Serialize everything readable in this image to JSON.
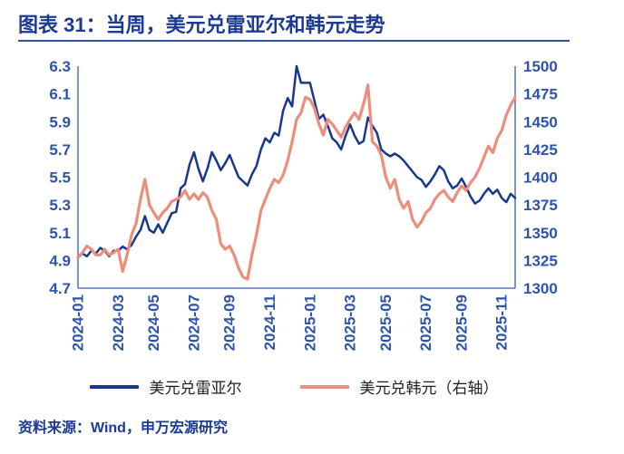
{
  "header": {
    "title": "图表 31：当周，美元兑雷亚尔和韩元走势"
  },
  "colors": {
    "accent_navy": "#1b3a94",
    "tick_blue": "#2d54a8",
    "axis_line": "#3a5ca8",
    "rule": "#2d54a8",
    "series_brl": "#17388c",
    "series_krw": "#ed8d7c",
    "legend_text": "#1f1f1f"
  },
  "chart_data": {
    "type": "line",
    "title": "当周，美元兑雷亚尔和韩元走势",
    "grid": false,
    "legend_position": "bottom",
    "x_tick_labels": [
      "2024-01",
      "2024-03",
      "2024-05",
      "2024-07",
      "2024-09",
      "2024-11",
      "2025-01",
      "2025-03",
      "2025-05",
      "2025-07",
      "2025-09",
      "2025-11"
    ],
    "x_tick_indices": [
      0,
      9,
      17,
      26,
      34,
      43,
      52,
      61,
      69,
      78,
      86,
      95
    ],
    "left_axis": {
      "min": 4.7,
      "max": 6.3,
      "step": 0.2,
      "ticks": [
        "6.3",
        "6.1",
        "5.9",
        "5.7",
        "5.5",
        "5.3",
        "5.1",
        "4.9",
        "4.7"
      ]
    },
    "right_axis": {
      "min": 1300,
      "max": 1500,
      "step": 25,
      "ticks": [
        "1500",
        "1475",
        "1450",
        "1425",
        "1400",
        "1375",
        "1350",
        "1325",
        "1300"
      ]
    },
    "series": [
      {
        "name": "美元兑雷亚尔",
        "axis": "left",
        "color_key": "series_brl",
        "values": [
          4.92,
          4.95,
          4.93,
          4.97,
          4.95,
          4.99,
          4.97,
          4.93,
          4.97,
          4.97,
          5.0,
          4.98,
          5.01,
          5.07,
          5.12,
          5.22,
          5.12,
          5.1,
          5.16,
          5.1,
          5.17,
          5.24,
          5.25,
          5.42,
          5.45,
          5.59,
          5.68,
          5.56,
          5.47,
          5.56,
          5.68,
          5.62,
          5.55,
          5.6,
          5.66,
          5.58,
          5.5,
          5.47,
          5.44,
          5.52,
          5.58,
          5.7,
          5.78,
          5.75,
          5.82,
          5.8,
          5.98,
          6.07,
          6.01,
          6.3,
          6.18,
          6.18,
          6.18,
          6.05,
          5.92,
          5.95,
          5.87,
          5.78,
          5.75,
          5.7,
          5.8,
          5.88,
          5.8,
          5.74,
          5.76,
          5.93,
          5.87,
          5.82,
          5.7,
          5.67,
          5.65,
          5.67,
          5.65,
          5.62,
          5.58,
          5.54,
          5.5,
          5.48,
          5.43,
          5.47,
          5.52,
          5.58,
          5.55,
          5.47,
          5.42,
          5.44,
          5.49,
          5.43,
          5.36,
          5.31,
          5.33,
          5.38,
          5.42,
          5.38,
          5.41,
          5.35,
          5.32,
          5.38,
          5.35
        ]
      },
      {
        "name": "美元兑韩元（右轴）",
        "axis": "right",
        "color_key": "series_krw",
        "values": [
          1328,
          1332,
          1338,
          1335,
          1330,
          1330,
          1335,
          1330,
          1332,
          1335,
          1315,
          1330,
          1348,
          1358,
          1380,
          1398,
          1375,
          1368,
          1362,
          1368,
          1372,
          1378,
          1380,
          1382,
          1388,
          1380,
          1385,
          1380,
          1386,
          1382,
          1370,
          1362,
          1340,
          1335,
          1338,
          1330,
          1318,
          1310,
          1308,
          1330,
          1348,
          1370,
          1380,
          1390,
          1398,
          1395,
          1402,
          1415,
          1432,
          1452,
          1458,
          1472,
          1470,
          1462,
          1448,
          1438,
          1452,
          1448,
          1442,
          1436,
          1445,
          1452,
          1458,
          1452,
          1466,
          1483,
          1432,
          1428,
          1420,
          1400,
          1390,
          1398,
          1380,
          1372,
          1378,
          1362,
          1355,
          1360,
          1368,
          1372,
          1380,
          1385,
          1388,
          1382,
          1378,
          1386,
          1392,
          1388,
          1395,
          1400,
          1408,
          1418,
          1428,
          1422,
          1435,
          1442,
          1456,
          1465,
          1472
        ]
      }
    ]
  },
  "footer": {
    "source": "资料来源：Wind，申万宏源研究"
  }
}
